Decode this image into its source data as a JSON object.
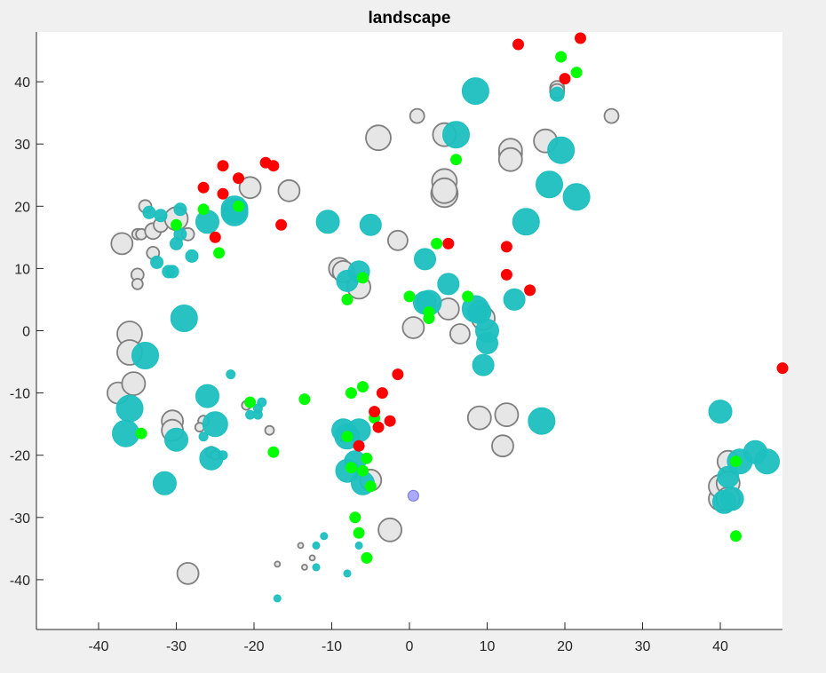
{
  "chart_data": {
    "type": "scatter",
    "title": "landscape",
    "xlabel": "",
    "ylabel": "",
    "xlim": [
      -48,
      48
    ],
    "ylim": [
      -48,
      48
    ],
    "xticks": [
      -40,
      -30,
      -20,
      -10,
      0,
      10,
      20,
      30,
      40
    ],
    "yticks": [
      -40,
      -30,
      -20,
      -10,
      0,
      10,
      20,
      30,
      40
    ],
    "grid": false,
    "colors": {
      "gray_fill": "#e6e6e6",
      "gray_edge": "#7f7f7f",
      "teal": "#1cbfbf",
      "green": "#00ff00",
      "red": "#ff0000",
      "blue_fill": "#aaaaff",
      "blue_edge": "#7f7fe5"
    },
    "series": [
      {
        "group": "gray",
        "points": [
          [
            -37,
            14,
            12
          ],
          [
            -36,
            -0.5,
            14
          ],
          [
            -36,
            -3.5,
            14
          ],
          [
            -37.5,
            -10,
            12
          ],
          [
            -35.5,
            -8.5,
            13
          ],
          [
            -34,
            20,
            7
          ],
          [
            -35,
            15.5,
            6
          ],
          [
            -34.5,
            15.5,
            6
          ],
          [
            -33,
            16,
            9
          ],
          [
            -32,
            17,
            8
          ],
          [
            -33,
            12.5,
            7
          ],
          [
            -35,
            9,
            7
          ],
          [
            -35,
            7.5,
            6
          ],
          [
            -30,
            18,
            13
          ],
          [
            -28.5,
            15.5,
            7
          ],
          [
            -30.5,
            -14.5,
            12
          ],
          [
            -30.5,
            -16,
            12
          ],
          [
            -26.5,
            -14.5,
            6
          ],
          [
            -27,
            -15.5,
            5
          ],
          [
            -25.5,
            -19.5,
            6
          ],
          [
            -25,
            -20,
            5
          ],
          [
            -21,
            -12,
            5
          ],
          [
            -18,
            -16,
            5
          ],
          [
            -20.5,
            23,
            12
          ],
          [
            -15.5,
            22.5,
            12
          ],
          [
            -28.5,
            -39,
            12
          ],
          [
            -14,
            -34.5,
            3
          ],
          [
            -12.5,
            -36.5,
            3
          ],
          [
            -13.5,
            -38,
            3
          ],
          [
            -17,
            -37.5,
            3
          ],
          [
            -9,
            10,
            12
          ],
          [
            -8.5,
            9.5,
            12
          ],
          [
            -6.5,
            7,
            13
          ],
          [
            -4,
            31,
            14
          ],
          [
            -1.5,
            14.5,
            11
          ],
          [
            1,
            34.5,
            8
          ],
          [
            0.5,
            0.5,
            12
          ],
          [
            4.5,
            31.5,
            13
          ],
          [
            4.5,
            24,
            14
          ],
          [
            4.5,
            22,
            15
          ],
          [
            4.5,
            22.5,
            14
          ],
          [
            5,
            3.5,
            12
          ],
          [
            6.5,
            -0.5,
            11
          ],
          [
            9.5,
            2,
            13
          ],
          [
            9,
            -14,
            13
          ],
          [
            12.5,
            -13.5,
            13
          ],
          [
            12,
            -18.5,
            12
          ],
          [
            13,
            28.5,
            13
          ],
          [
            13,
            29,
            13
          ],
          [
            13,
            27.5,
            13
          ],
          [
            17.5,
            30.5,
            13
          ],
          [
            19,
            39,
            8
          ],
          [
            19,
            38.5,
            8
          ],
          [
            26,
            34.5,
            8
          ],
          [
            40,
            -27,
            13
          ],
          [
            40,
            -25,
            13
          ],
          [
            41,
            -21,
            12
          ],
          [
            41,
            -24.5,
            13
          ],
          [
            41,
            -27,
            13
          ],
          [
            -5,
            -24,
            12
          ],
          [
            -2.5,
            -32,
            13
          ]
        ]
      },
      {
        "group": "teal",
        "points": [
          [
            -36,
            -12.5,
            15
          ],
          [
            -36.5,
            -16.5,
            15
          ],
          [
            -34,
            -4,
            15
          ],
          [
            -33.5,
            19,
            7
          ],
          [
            -32,
            18.5,
            7
          ],
          [
            -32.5,
            11,
            7
          ],
          [
            -31,
            9.5,
            7
          ],
          [
            -30.5,
            9.5,
            7
          ],
          [
            -30,
            14,
            7
          ],
          [
            -29.5,
            15.5,
            7
          ],
          [
            -29.5,
            19.5,
            7
          ],
          [
            -29,
            2,
            15
          ],
          [
            -28,
            12,
            7
          ],
          [
            -30,
            -17.5,
            13
          ],
          [
            -31.5,
            -24.5,
            13
          ],
          [
            -26,
            -10.5,
            13
          ],
          [
            -26.5,
            -17,
            5
          ],
          [
            -25,
            -15,
            14
          ],
          [
            -25.5,
            -20.5,
            13
          ],
          [
            -24,
            -20,
            5
          ],
          [
            -23,
            -7,
            5
          ],
          [
            -22.5,
            19,
            15
          ],
          [
            -22.5,
            19.5,
            15
          ],
          [
            -26,
            17.5,
            13
          ],
          [
            -20.5,
            -13.5,
            5
          ],
          [
            -19.5,
            -12.5,
            5
          ],
          [
            -19.5,
            -13.5,
            5
          ],
          [
            -19,
            -11.5,
            5
          ],
          [
            -10.5,
            17.5,
            13
          ],
          [
            -8.5,
            -16,
            13
          ],
          [
            -8,
            -17,
            14
          ],
          [
            -8,
            -22.5,
            13
          ],
          [
            -8,
            8,
            12
          ],
          [
            -7,
            -21,
            12
          ],
          [
            -6.5,
            -16,
            13
          ],
          [
            -6.5,
            9.5,
            12
          ],
          [
            -6,
            -24.5,
            13
          ],
          [
            -5,
            17,
            12
          ],
          [
            -12,
            -34.5,
            4
          ],
          [
            -11,
            -33,
            4
          ],
          [
            -12,
            -38,
            4
          ],
          [
            -8,
            -39,
            4
          ],
          [
            -17,
            -43,
            4
          ],
          [
            -6.5,
            -34.5,
            4
          ],
          [
            2,
            11.5,
            12
          ],
          [
            2,
            4.5,
            13
          ],
          [
            2.5,
            4.5,
            14
          ],
          [
            5,
            7.5,
            12
          ],
          [
            6,
            31.5,
            15
          ],
          [
            8.5,
            38.5,
            15
          ],
          [
            8.5,
            3.5,
            15
          ],
          [
            9,
            3,
            13
          ],
          [
            10,
            -2,
            12
          ],
          [
            10,
            0,
            13
          ],
          [
            9.5,
            -5.5,
            12
          ],
          [
            15,
            17.5,
            15
          ],
          [
            13.5,
            5,
            12
          ],
          [
            17,
            -14.5,
            15
          ],
          [
            18,
            23.5,
            15
          ],
          [
            19,
            38,
            8
          ],
          [
            19.5,
            29,
            15
          ],
          [
            21.5,
            21.5,
            15
          ],
          [
            40,
            -13,
            13
          ],
          [
            41,
            -23.5,
            12
          ],
          [
            40.5,
            -27.5,
            13
          ],
          [
            41.5,
            -27,
            13
          ],
          [
            42.5,
            -21,
            14
          ],
          [
            44.5,
            -19.5,
            13
          ],
          [
            46,
            -21,
            14
          ]
        ]
      },
      {
        "group": "green",
        "points": [
          [
            -34.5,
            -16.5,
            6
          ],
          [
            -30,
            17,
            6
          ],
          [
            -26.5,
            19.5,
            6
          ],
          [
            -24.5,
            12.5,
            6
          ],
          [
            -22,
            20,
            6
          ],
          [
            -20.5,
            -11.5,
            6
          ],
          [
            -17.5,
            -19.5,
            6
          ],
          [
            -13.5,
            -11,
            6
          ],
          [
            -8,
            5,
            6
          ],
          [
            -8,
            -17,
            6
          ],
          [
            -7.5,
            -10,
            6
          ],
          [
            -7.5,
            -22,
            6
          ],
          [
            -6,
            -9,
            6
          ],
          [
            -6,
            -22.5,
            6
          ],
          [
            -6,
            8.5,
            6
          ],
          [
            -5.5,
            -20.5,
            6
          ],
          [
            -5,
            -25,
            6
          ],
          [
            -7,
            -30,
            6
          ],
          [
            -6.5,
            -32.5,
            6
          ],
          [
            -5.5,
            -36.5,
            6
          ],
          [
            -4.5,
            -14,
            6
          ],
          [
            0,
            5.5,
            6
          ],
          [
            2.5,
            3,
            6
          ],
          [
            2.5,
            2,
            6
          ],
          [
            3.5,
            14,
            6
          ],
          [
            6,
            27.5,
            6
          ],
          [
            7.5,
            5.5,
            6
          ],
          [
            19.5,
            44,
            6
          ],
          [
            21.5,
            41.5,
            6
          ],
          [
            42,
            -21,
            6
          ],
          [
            42,
            -33,
            6
          ]
        ]
      },
      {
        "group": "red",
        "points": [
          [
            -26.5,
            23,
            6
          ],
          [
            -25,
            15,
            6
          ],
          [
            -24,
            26.5,
            6
          ],
          [
            -24,
            22,
            6
          ],
          [
            -22,
            24.5,
            6
          ],
          [
            -18.5,
            27,
            6
          ],
          [
            -17.5,
            26.5,
            6
          ],
          [
            -16.5,
            17,
            6
          ],
          [
            -6.5,
            -18.5,
            6
          ],
          [
            -4.5,
            -13,
            6
          ],
          [
            -4,
            -15.5,
            6
          ],
          [
            -3.5,
            -10,
            6
          ],
          [
            -2.5,
            -14.5,
            6
          ],
          [
            -1.5,
            -7,
            6
          ],
          [
            5,
            14,
            6
          ],
          [
            12.5,
            13.5,
            6
          ],
          [
            12.5,
            9,
            6
          ],
          [
            15.5,
            6.5,
            6
          ],
          [
            14,
            46,
            6
          ],
          [
            20,
            40.5,
            6
          ],
          [
            22,
            47,
            6
          ],
          [
            48,
            -6,
            6
          ]
        ]
      },
      {
        "group": "blue",
        "points": [
          [
            0.5,
            -26.5,
            6
          ]
        ]
      }
    ]
  }
}
